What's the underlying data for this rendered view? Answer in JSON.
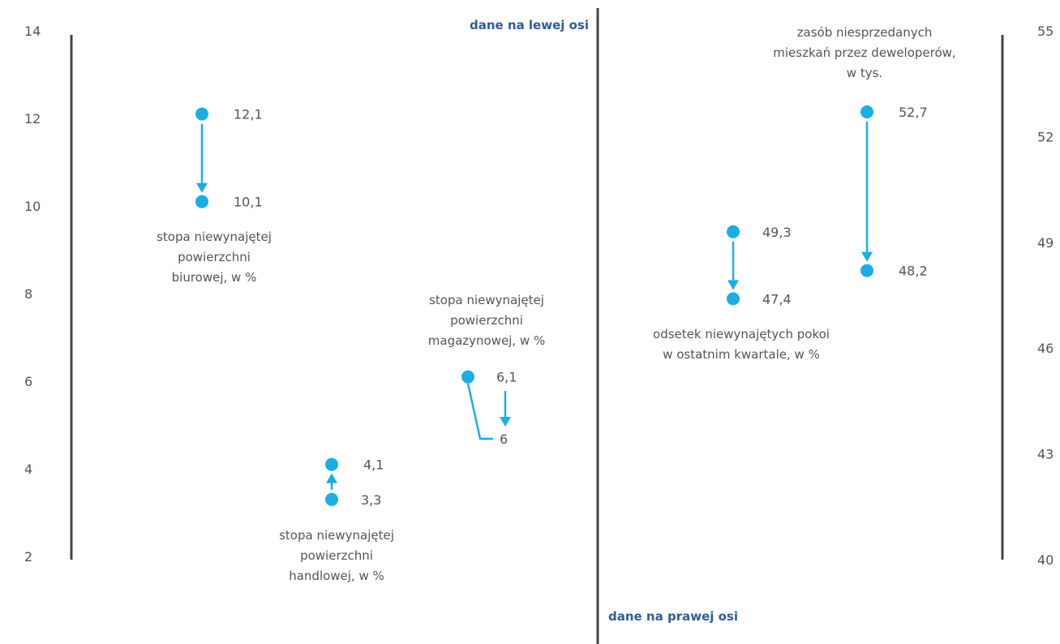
{
  "chart_data": {
    "type": "scatter",
    "colors": {
      "accent": "#1aaee5",
      "axis": "#444444",
      "text": "#555555",
      "note": "#2f5d9a"
    },
    "left_axis": {
      "ylim": [
        2,
        14
      ],
      "ticks": [
        "2",
        "4",
        "6",
        "8",
        "10",
        "12",
        "14"
      ]
    },
    "right_axis": {
      "ylim": [
        40,
        55
      ],
      "ticks": [
        "40",
        "43",
        "46",
        "49",
        "52",
        "55"
      ]
    },
    "notes": {
      "left": "dane na lewej osi",
      "right": "dane na prawej  osi"
    },
    "series": [
      {
        "axis": "left",
        "label": [
          "stopa niewynajętej",
          "powierzchni",
          "biurowej, w %"
        ],
        "from": {
          "y": 12.1,
          "label": "12,1"
        },
        "to": {
          "y": 10.1,
          "label": "10,1"
        }
      },
      {
        "axis": "left",
        "label": [
          "stopa niewynajętej",
          "powierzchni",
          "handlowej, w %"
        ],
        "from": {
          "y": 3.3,
          "label": "3,3"
        },
        "to": {
          "y": 4.1,
          "label": "4,1"
        }
      },
      {
        "axis": "left",
        "label": [
          "stopa niewynajętej",
          "powierzchni",
          "magazynowej, w %"
        ],
        "from": {
          "y": 6.1,
          "label": "6,1"
        },
        "to": {
          "y": 6,
          "label": "6"
        }
      },
      {
        "axis": "right",
        "label": [
          "odsetek niewynajętych pokoi",
          "w ostatnim kwartale, w %"
        ],
        "from": {
          "y": 49.3,
          "label": "49,3"
        },
        "to": {
          "y": 47.4,
          "label": "47,4"
        }
      },
      {
        "axis": "right",
        "label": [
          "zasób niesprzedanych",
          "mieszkań przez deweloperów,",
          "w tys."
        ],
        "from": {
          "y": 52.7,
          "label": "52,7"
        },
        "to": {
          "y": 48.2,
          "label": "48,2"
        }
      }
    ]
  }
}
